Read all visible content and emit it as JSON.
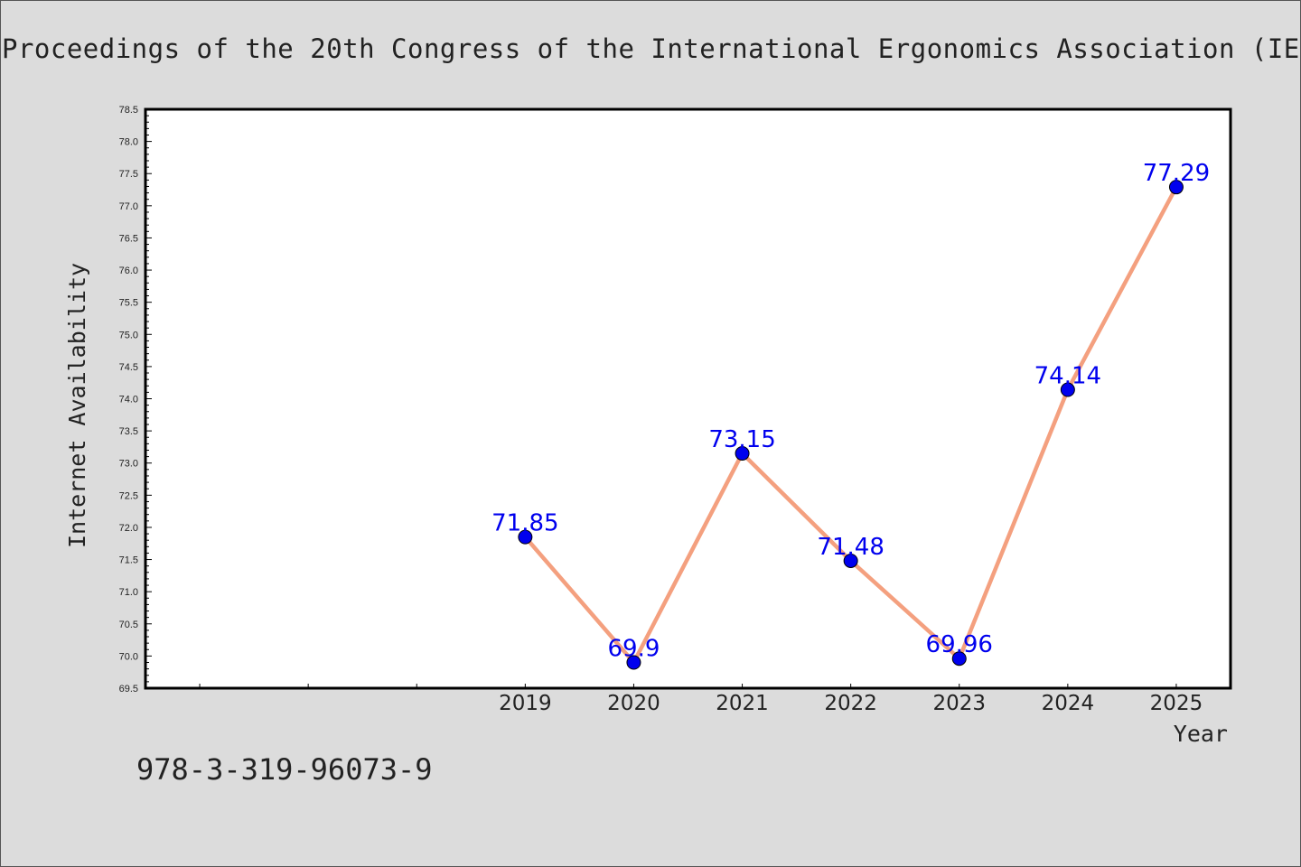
{
  "header": {
    "title": "Proceedings of the 20th Congress of the International Ergonomics Association (IE"
  },
  "footer": {
    "isbn": "978-3-319-96073-9"
  },
  "chart_data": {
    "type": "line",
    "categories": [
      "2019",
      "2020",
      "2021",
      "2022",
      "2023",
      "2024",
      "2025"
    ],
    "values": [
      71.85,
      69.9,
      73.15,
      71.48,
      69.96,
      74.14,
      77.29
    ],
    "data_labels": [
      "71.85",
      "69.9",
      "73.15",
      "71.48",
      "69.96",
      "74.14",
      "77.29"
    ],
    "xlabel": "Year",
    "ylabel": "Internet Availability",
    "ylim": [
      69.5,
      78.5
    ],
    "y_ticks": [
      "69.5",
      "70.0",
      "70.5",
      "71.0",
      "71.5",
      "72.0",
      "72.5",
      "73.0",
      "73.5",
      "74.0",
      "74.5",
      "75.0",
      "75.5",
      "76.0",
      "76.5",
      "77.0",
      "77.5",
      "78.0",
      "78.5"
    ],
    "line_color": "#f4a07f",
    "marker_color": "#0000ee",
    "label_color": "#0000ee",
    "grid": false,
    "legend": "none"
  }
}
